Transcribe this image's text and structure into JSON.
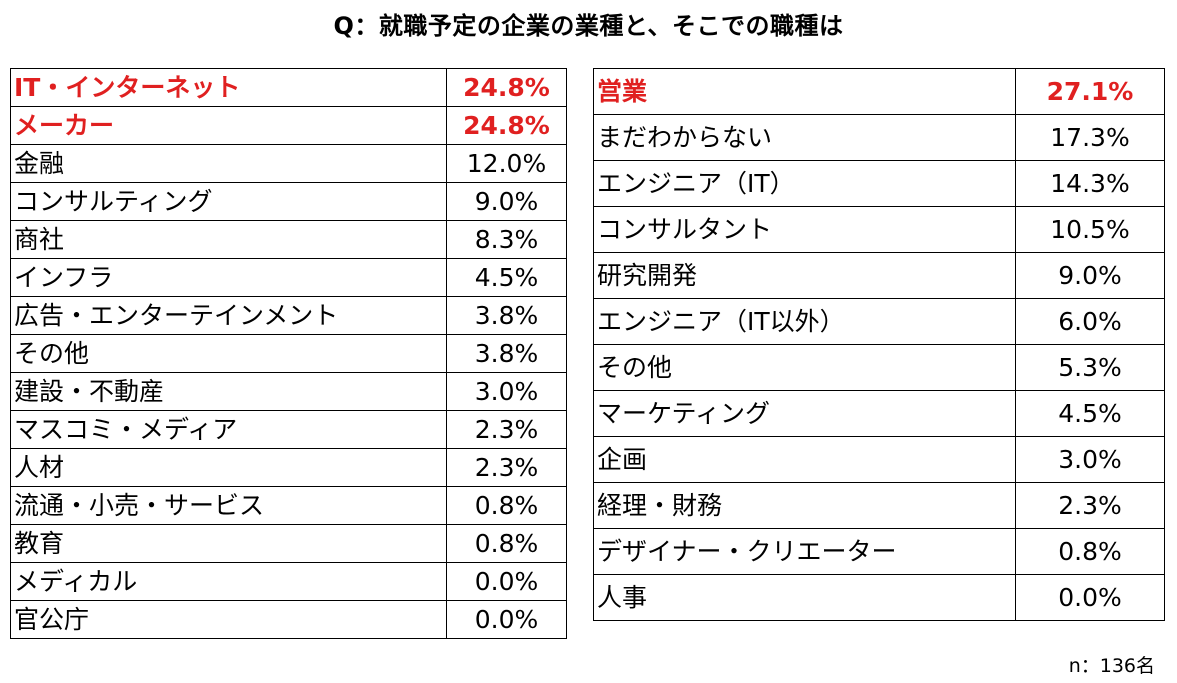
{
  "title": "Q：就職予定の企業の業種と、そこでの職種は",
  "colors": {
    "highlight": "#e02020",
    "text": "#000000",
    "border": "#000000"
  },
  "chart_data": [
    {
      "type": "table",
      "categories": [
        "IT・インターネット",
        "メーカー",
        "金融",
        "コンサルティング",
        "商社",
        "インフラ",
        "広告・エンターテインメント",
        "その他",
        "建設・不動産",
        "マスコミ・メディア",
        "人材",
        "流通・小売・サービス",
        "教育",
        "メディカル",
        "官公庁"
      ],
      "values": [
        24.8,
        24.8,
        12.0,
        9.0,
        8.3,
        4.5,
        3.8,
        3.8,
        3.0,
        2.3,
        2.3,
        0.8,
        0.8,
        0.0,
        0.0
      ],
      "rows": [
        {
          "label": "IT・インターネット",
          "value": "24.8%",
          "highlight": true
        },
        {
          "label": "メーカー",
          "value": "24.8%",
          "highlight": true
        },
        {
          "label": "金融",
          "value": "12.0%",
          "highlight": false
        },
        {
          "label": "コンサルティング",
          "value": "9.0%",
          "highlight": false
        },
        {
          "label": "商社",
          "value": "8.3%",
          "highlight": false
        },
        {
          "label": "インフラ",
          "value": "4.5%",
          "highlight": false
        },
        {
          "label": "広告・エンターテインメント",
          "value": "3.8%",
          "highlight": false
        },
        {
          "label": "その他",
          "value": "3.8%",
          "highlight": false
        },
        {
          "label": "建設・不動産",
          "value": "3.0%",
          "highlight": false
        },
        {
          "label": "マスコミ・メディア",
          "value": "2.3%",
          "highlight": false
        },
        {
          "label": "人材",
          "value": "2.3%",
          "highlight": false
        },
        {
          "label": "流通・小売・サービス",
          "value": "0.8%",
          "highlight": false
        },
        {
          "label": "教育",
          "value": "0.8%",
          "highlight": false
        },
        {
          "label": "メディカル",
          "value": "0.0%",
          "highlight": false
        },
        {
          "label": "官公庁",
          "value": "0.0%",
          "highlight": false
        }
      ]
    },
    {
      "type": "table",
      "categories": [
        "営業",
        "まだわからない",
        "エンジニア（IT）",
        "コンサルタント",
        "研究開発",
        "エンジニア（IT以外）",
        "その他",
        "マーケティング",
        "企画",
        "経理・財務",
        "デザイナー・クリエーター",
        "人事"
      ],
      "values": [
        27.1,
        17.3,
        14.3,
        10.5,
        9.0,
        6.0,
        5.3,
        4.5,
        3.0,
        2.3,
        0.8,
        0.0
      ],
      "rows": [
        {
          "label": "営業",
          "value": "27.1%",
          "highlight": true
        },
        {
          "label": "まだわからない",
          "value": "17.3%",
          "highlight": false
        },
        {
          "label": "エンジニア（IT）",
          "value": "14.3%",
          "highlight": false
        },
        {
          "label": "コンサルタント",
          "value": "10.5%",
          "highlight": false
        },
        {
          "label": "研究開発",
          "value": "9.0%",
          "highlight": false
        },
        {
          "label": "エンジニア（IT以外）",
          "value": "6.0%",
          "highlight": false
        },
        {
          "label": "その他",
          "value": "5.3%",
          "highlight": false
        },
        {
          "label": "マーケティング",
          "value": "4.5%",
          "highlight": false
        },
        {
          "label": "企画",
          "value": "3.0%",
          "highlight": false
        },
        {
          "label": "経理・財務",
          "value": "2.3%",
          "highlight": false
        },
        {
          "label": "デザイナー・クリエーター",
          "value": "0.8%",
          "highlight": false
        },
        {
          "label": "人事",
          "value": "0.0%",
          "highlight": false
        }
      ]
    }
  ],
  "sample_note": "n：136名"
}
